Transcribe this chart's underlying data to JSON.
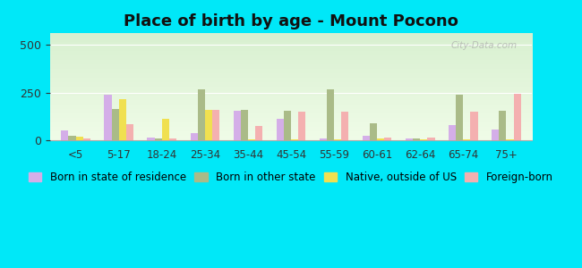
{
  "title": "Place of birth by age - Mount Pocono",
  "categories": [
    "<5",
    "5-17",
    "18-24",
    "25-34",
    "35-44",
    "45-54",
    "55-59",
    "60-61",
    "62-64",
    "65-74",
    "75+"
  ],
  "series": {
    "Born in state of residence": [
      50,
      240,
      15,
      35,
      155,
      110,
      8,
      22,
      8,
      80,
      55
    ],
    "Born in other state": [
      25,
      165,
      8,
      265,
      160,
      155,
      265,
      90,
      8,
      240,
      155
    ],
    "Native, outside of US": [
      18,
      215,
      110,
      160,
      5,
      5,
      5,
      8,
      5,
      5,
      5
    ],
    "Foreign-born": [
      8,
      85,
      8,
      160,
      75,
      150,
      150,
      12,
      12,
      150,
      245
    ]
  },
  "colors": {
    "Born in state of residence": "#d4aee8",
    "Born in other state": "#aabb88",
    "Native, outside of US": "#f0e050",
    "Foreign-born": "#f4b0b0"
  },
  "ylim": [
    0,
    560
  ],
  "yticks": [
    0,
    250,
    500
  ],
  "outer_bg": "#00e8f8",
  "plot_bg_top": "#d8f0d0",
  "plot_bg_bottom": "#f0fce8",
  "title_fontsize": 13,
  "legend_fontsize": 8.5,
  "bar_width": 0.17
}
